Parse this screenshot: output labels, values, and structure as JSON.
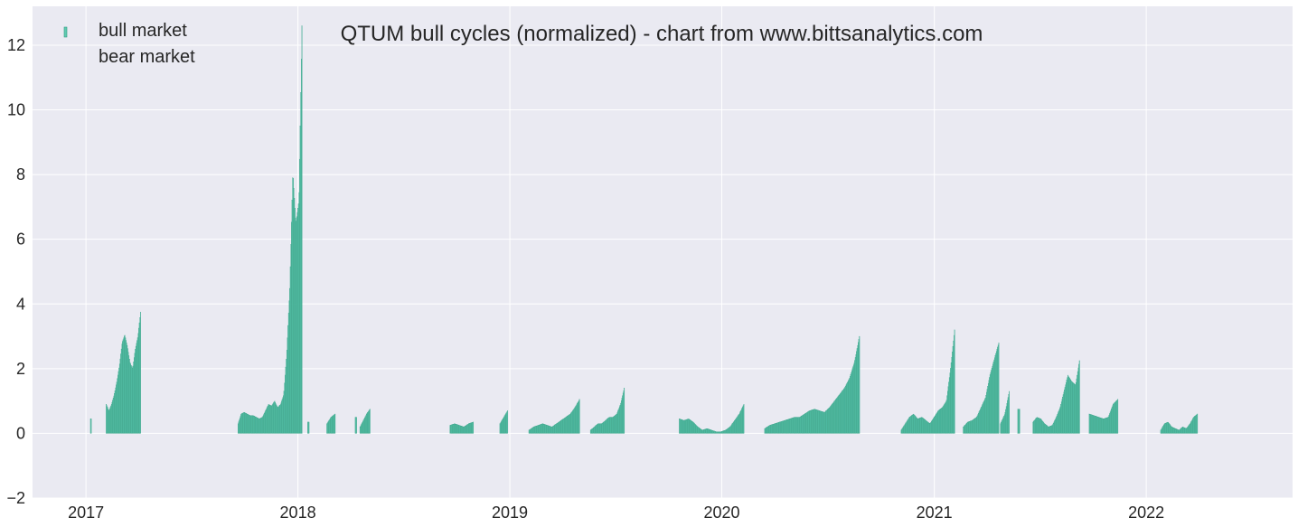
{
  "chart_data": {
    "type": "bar",
    "title": "QTUM bull cycles (normalized)  - chart from www.bittsanalytics.com",
    "xlabel": "",
    "ylabel": "",
    "ylim": [
      -2,
      13.2
    ],
    "xlim": [
      "2016-10-01",
      "2022-09-10"
    ],
    "y_ticks": [
      "−2",
      "0",
      "2",
      "4",
      "6",
      "8",
      "10",
      "12"
    ],
    "x_ticks": [
      {
        "date": "2017-01-01",
        "label": "2017"
      },
      {
        "date": "2018-01-01",
        "label": "2018"
      },
      {
        "date": "2019-01-01",
        "label": "2019"
      },
      {
        "date": "2020-01-01",
        "label": "2020"
      },
      {
        "date": "2021-01-01",
        "label": "2021"
      },
      {
        "date": "2022-01-01",
        "label": "2022"
      }
    ],
    "grid": true,
    "legend_position": "top-left",
    "colors": {
      "background": "#eaeaf2",
      "grid": "#ffffff",
      "bull": "#5fcab0",
      "bull_edge": "#2e9c80"
    },
    "series": [
      {
        "name": "bull market",
        "color": "#5fcab0",
        "segments": [
          {
            "start": "2017-01-09",
            "end": "2017-01-10",
            "values": [
              0.45
            ]
          },
          {
            "start": "2017-02-05",
            "end": "2017-04-05",
            "values": [
              0.9,
              0.7,
              0.9,
              1.2,
              1.6,
              2.1,
              2.8,
              3.05,
              2.7,
              2.2,
              2.0,
              2.6,
              3.0,
              3.75
            ]
          },
          {
            "start": "2017-09-20",
            "end": "2018-01-08",
            "values": [
              0.3,
              0.6,
              0.65,
              0.6,
              0.55,
              0.55,
              0.5,
              0.45,
              0.5,
              0.7,
              0.9,
              0.85,
              1.0,
              0.8,
              0.9,
              1.2,
              2.5,
              4.5,
              8.1,
              6.5,
              7.2,
              12.6
            ]
          },
          {
            "start": "2018-01-18",
            "end": "2018-01-20",
            "values": [
              0.35
            ]
          },
          {
            "start": "2018-02-20",
            "end": "2018-03-06",
            "values": [
              0.3,
              0.5,
              0.6
            ]
          },
          {
            "start": "2018-04-10",
            "end": "2018-04-12",
            "values": [
              0.5
            ]
          },
          {
            "start": "2018-04-18",
            "end": "2018-05-05",
            "values": [
              0.2,
              0.4,
              0.6,
              0.75
            ]
          },
          {
            "start": "2018-09-20",
            "end": "2018-10-30",
            "values": [
              0.25,
              0.3,
              0.25,
              0.2,
              0.3,
              0.35
            ]
          },
          {
            "start": "2018-12-15",
            "end": "2018-12-28",
            "values": [
              0.3,
              0.7
            ]
          },
          {
            "start": "2019-02-03",
            "end": "2019-05-01",
            "values": [
              0.1,
              0.2,
              0.25,
              0.3,
              0.25,
              0.2,
              0.3,
              0.4,
              0.5,
              0.6,
              0.8,
              1.05
            ]
          },
          {
            "start": "2019-05-20",
            "end": "2019-07-17",
            "values": [
              0.1,
              0.2,
              0.3,
              0.3,
              0.4,
              0.5,
              0.5,
              0.6,
              0.9,
              1.4
            ]
          },
          {
            "start": "2019-10-20",
            "end": "2020-02-08",
            "values": [
              0.45,
              0.4,
              0.45,
              0.35,
              0.2,
              0.1,
              0.15,
              0.1,
              0.05,
              0.05,
              0.1,
              0.2,
              0.4,
              0.6,
              0.9
            ]
          },
          {
            "start": "2020-03-15",
            "end": "2020-08-25",
            "values": [
              0.15,
              0.25,
              0.3,
              0.35,
              0.4,
              0.45,
              0.5,
              0.5,
              0.6,
              0.7,
              0.75,
              0.7,
              0.65,
              0.8,
              1.0,
              1.2,
              1.4,
              1.7,
              2.2,
              3.0
            ]
          },
          {
            "start": "2020-11-05",
            "end": "2021-02-05",
            "values": [
              0.1,
              0.3,
              0.5,
              0.6,
              0.45,
              0.5,
              0.4,
              0.3,
              0.5,
              0.7,
              0.8,
              1.0,
              2.0,
              3.2
            ]
          },
          {
            "start": "2021-02-20",
            "end": "2021-04-22",
            "values": [
              0.2,
              0.35,
              0.4,
              0.5,
              0.8,
              1.1,
              1.8,
              2.3,
              2.8
            ]
          },
          {
            "start": "2021-04-25",
            "end": "2021-05-10",
            "values": [
              0.3,
              0.6,
              1.3
            ]
          },
          {
            "start": "2021-05-25",
            "end": "2021-05-28",
            "values": [
              0.75
            ]
          },
          {
            "start": "2021-06-20",
            "end": "2021-09-08",
            "values": [
              0.35,
              0.5,
              0.45,
              0.3,
              0.2,
              0.25,
              0.5,
              0.8,
              1.3,
              1.8,
              1.6,
              1.5,
              2.25
            ]
          },
          {
            "start": "2021-09-25",
            "end": "2021-11-13",
            "values": [
              0.6,
              0.55,
              0.5,
              0.45,
              0.5,
              0.9,
              1.05
            ]
          },
          {
            "start": "2022-01-26",
            "end": "2022-03-30",
            "values": [
              0.1,
              0.3,
              0.35,
              0.2,
              0.15,
              0.1,
              0.2,
              0.15,
              0.3,
              0.5,
              0.6
            ]
          }
        ]
      },
      {
        "name": "bear market",
        "color": "#eaeaf2",
        "segments": []
      }
    ]
  }
}
